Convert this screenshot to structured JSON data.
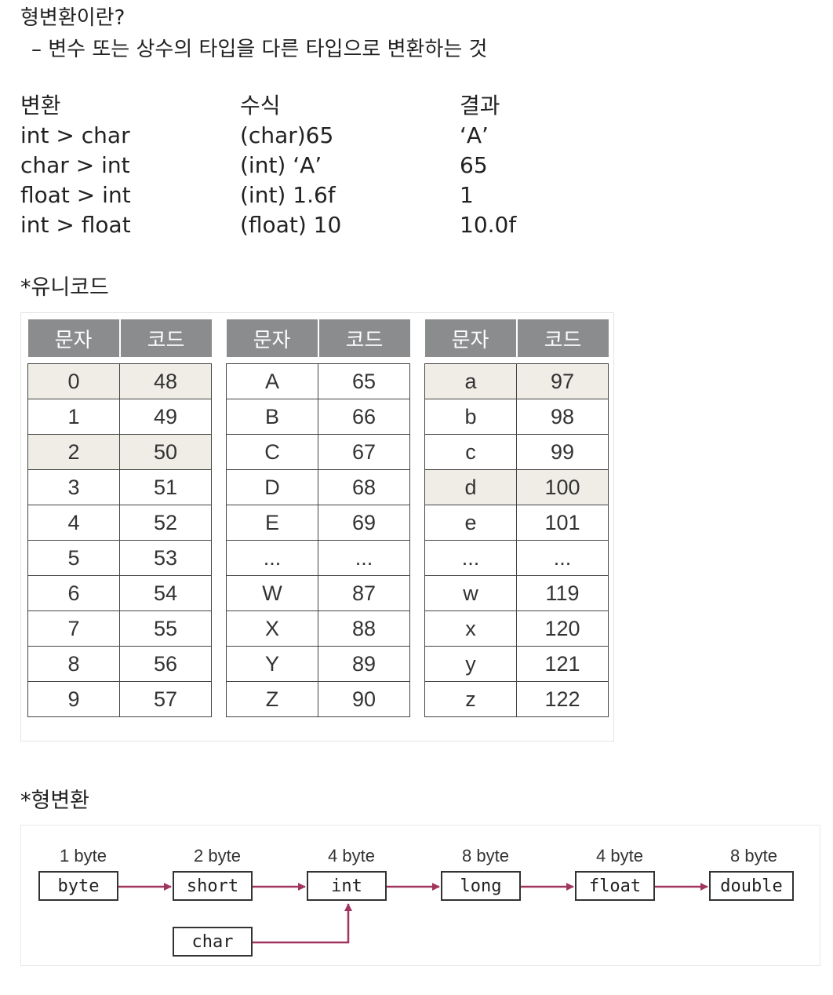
{
  "header": {
    "title": "형변환이란?",
    "definition": "–  변수 또는 상수의 타입을 다른 타입으로 변환하는 것"
  },
  "conversion_table": {
    "headers": [
      "변환",
      "수식",
      "결과"
    ],
    "rows": [
      [
        "int > char",
        "(char)65",
        "‘A’"
      ],
      [
        "char > int",
        "(int) ‘A’",
        "65"
      ],
      [
        "float > int",
        "(int) 1.6f",
        "1"
      ],
      [
        "int > float",
        "(float) 10",
        "10.0f"
      ]
    ]
  },
  "unicode_section": {
    "title": "*유니코드",
    "tables": [
      {
        "headers": [
          "문자",
          "코드"
        ],
        "rows": [
          [
            "0",
            "48"
          ],
          [
            "1",
            "49"
          ],
          [
            "2",
            "50"
          ],
          [
            "3",
            "51"
          ],
          [
            "4",
            "52"
          ],
          [
            "5",
            "53"
          ],
          [
            "6",
            "54"
          ],
          [
            "7",
            "55"
          ],
          [
            "8",
            "56"
          ],
          [
            "9",
            "57"
          ]
        ],
        "highlight": [
          0,
          2
        ]
      },
      {
        "headers": [
          "문자",
          "코드"
        ],
        "rows": [
          [
            "A",
            "65"
          ],
          [
            "B",
            "66"
          ],
          [
            "C",
            "67"
          ],
          [
            "D",
            "68"
          ],
          [
            "E",
            "69"
          ],
          [
            "...",
            "..."
          ],
          [
            "W",
            "87"
          ],
          [
            "X",
            "88"
          ],
          [
            "Y",
            "89"
          ],
          [
            "Z",
            "90"
          ]
        ],
        "highlight": []
      },
      {
        "headers": [
          "문자",
          "코드"
        ],
        "rows": [
          [
            "a",
            "97"
          ],
          [
            "b",
            "98"
          ],
          [
            "c",
            "99"
          ],
          [
            "d",
            "100"
          ],
          [
            "e",
            "101"
          ],
          [
            "...",
            "..."
          ],
          [
            "w",
            "119"
          ],
          [
            "x",
            "120"
          ],
          [
            "y",
            "121"
          ],
          [
            "z",
            "122"
          ]
        ],
        "highlight": [
          0,
          3
        ]
      }
    ],
    "highlight_color": "#efede6",
    "header_color": "#8b8c8e"
  },
  "cast_section": {
    "title": "*형변환",
    "types": [
      {
        "size": "1 byte",
        "name": "byte"
      },
      {
        "size": "2 byte",
        "name": "short"
      },
      {
        "size": "4 byte",
        "name": "int"
      },
      {
        "size": "8 byte",
        "name": "long"
      },
      {
        "size": "4 byte",
        "name": "float"
      },
      {
        "size": "8 byte",
        "name": "double"
      }
    ],
    "extra": {
      "name": "char"
    },
    "arrow_color": "#a0365e"
  }
}
